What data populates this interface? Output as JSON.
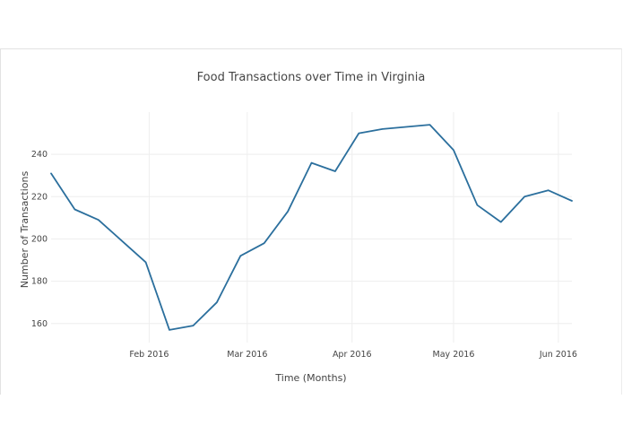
{
  "chart_data": {
    "type": "line",
    "title": "Food Transactions over Time in Virginia",
    "xlabel": "Time (Months)",
    "ylabel": "Number of Transactions",
    "xlim": [
      "2016-01-03",
      "2016-06-05"
    ],
    "ylim": [
      151,
      260
    ],
    "grid": true,
    "x_ticks": [
      {
        "date": "2016-02-01",
        "label": "Feb 2016"
      },
      {
        "date": "2016-03-01",
        "label": "Mar 2016"
      },
      {
        "date": "2016-04-01",
        "label": "Apr 2016"
      },
      {
        "date": "2016-05-01",
        "label": "May 2016"
      },
      {
        "date": "2016-06-01",
        "label": "Jun 2016"
      }
    ],
    "y_ticks": [
      160,
      180,
      200,
      220,
      240
    ],
    "series": [
      {
        "color": "#2b6f9d",
        "x": [
          "2016-01-03",
          "2016-01-10",
          "2016-01-17",
          "2016-01-24",
          "2016-01-31",
          "2016-02-07",
          "2016-02-14",
          "2016-02-21",
          "2016-02-28",
          "2016-03-06",
          "2016-03-13",
          "2016-03-20",
          "2016-03-27",
          "2016-04-03",
          "2016-04-10",
          "2016-04-17",
          "2016-04-24",
          "2016-05-01",
          "2016-05-08",
          "2016-05-15",
          "2016-05-22",
          "2016-05-29",
          "2016-06-05"
        ],
        "y": [
          231,
          214,
          209,
          199,
          189,
          157,
          159,
          170,
          192,
          198,
          213,
          236,
          232,
          250,
          252,
          253,
          254,
          242,
          216,
          208,
          220,
          223,
          218
        ]
      }
    ]
  }
}
